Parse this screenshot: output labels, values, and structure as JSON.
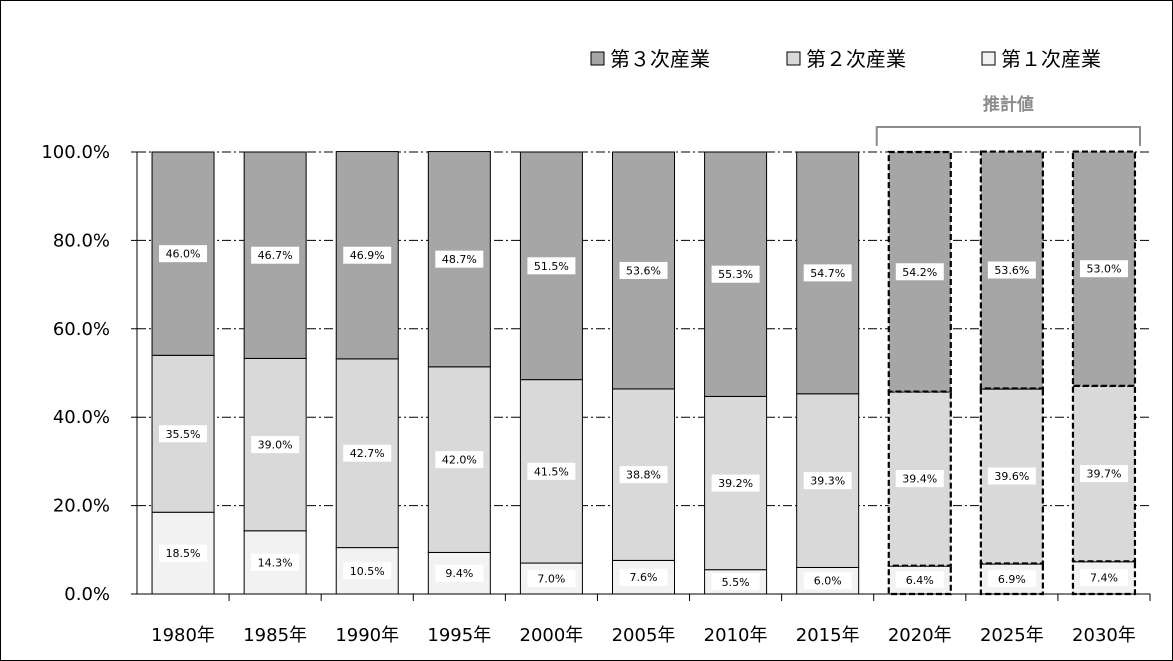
{
  "chart_data": {
    "type": "bar",
    "stacked": true,
    "categories": [
      "1980年",
      "1985年",
      "1990年",
      "1995年",
      "2000年",
      "2005年",
      "2010年",
      "2015年",
      "2020年",
      "2025年",
      "2030年"
    ],
    "series": [
      {
        "name": "第１次産業",
        "color": "#f2f2f2",
        "values": [
          18.5,
          14.3,
          10.5,
          9.4,
          7.0,
          7.6,
          5.5,
          6.0,
          6.4,
          6.9,
          7.4
        ],
        "labels": [
          "18.5%",
          "14.3%",
          "10.5%",
          "9.4%",
          "7.0%",
          "7.6%",
          "5.5%",
          "6.0%",
          "6.4%",
          "6.9%",
          "7.4%"
        ]
      },
      {
        "name": "第２次産業",
        "color": "#d9d9d9",
        "values": [
          35.5,
          39.0,
          42.7,
          42.0,
          41.5,
          38.8,
          39.2,
          39.3,
          39.4,
          39.6,
          39.7
        ],
        "labels": [
          "35.5%",
          "39.0%",
          "42.7%",
          "42.0%",
          "41.5%",
          "38.8%",
          "39.2%",
          "39.3%",
          "39.4%",
          "39.6%",
          "39.7%"
        ]
      },
      {
        "name": "第３次産業",
        "color": "#a6a6a6",
        "values": [
          46.0,
          46.7,
          46.9,
          48.7,
          51.5,
          53.6,
          55.3,
          54.7,
          54.2,
          53.6,
          53.0
        ],
        "labels": [
          "46.0%",
          "46.7%",
          "46.9%",
          "48.7%",
          "51.5%",
          "53.6%",
          "55.3%",
          "54.7%",
          "54.2%",
          "53.6%",
          "53.0%"
        ]
      }
    ],
    "ylim": [
      0,
      100
    ],
    "yticks": [
      "0.0%",
      "20.0%",
      "40.0%",
      "60.0%",
      "80.0%",
      "100.0%"
    ],
    "grid": true,
    "legend_position": "top-right",
    "legend_order": [
      "第３次産業",
      "第２次産業",
      "第１次産業"
    ],
    "estimate_label": "推計値",
    "estimate_categories": [
      "2020年",
      "2025年",
      "2030年"
    ]
  }
}
